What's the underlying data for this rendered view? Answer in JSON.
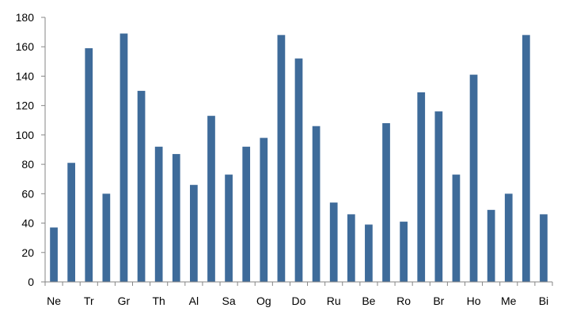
{
  "chart_data": {
    "type": "bar",
    "title": "",
    "xlabel": "",
    "ylabel": "",
    "ylim": [
      0,
      180
    ],
    "yticks": [
      0,
      20,
      40,
      60,
      80,
      100,
      120,
      140,
      160,
      180
    ],
    "grid": false,
    "legend": "none",
    "bar_color": "#3E6B9A",
    "categories": [
      "Ne",
      "",
      "Tr",
      "",
      "Gr",
      "",
      "Th",
      "",
      "Al",
      "",
      "Sa",
      "",
      "Og",
      "",
      "Do",
      "",
      "Ru",
      "",
      "Be",
      "",
      "Ro",
      "",
      "Br",
      "",
      "Ho",
      "",
      "Me",
      "",
      "Bi"
    ],
    "values": [
      37,
      81,
      159,
      60,
      169,
      130,
      92,
      87,
      66,
      113,
      73,
      92,
      98,
      168,
      152,
      106,
      54,
      46,
      39,
      108,
      41,
      129,
      116,
      73,
      141,
      49,
      60,
      168,
      46
    ]
  }
}
